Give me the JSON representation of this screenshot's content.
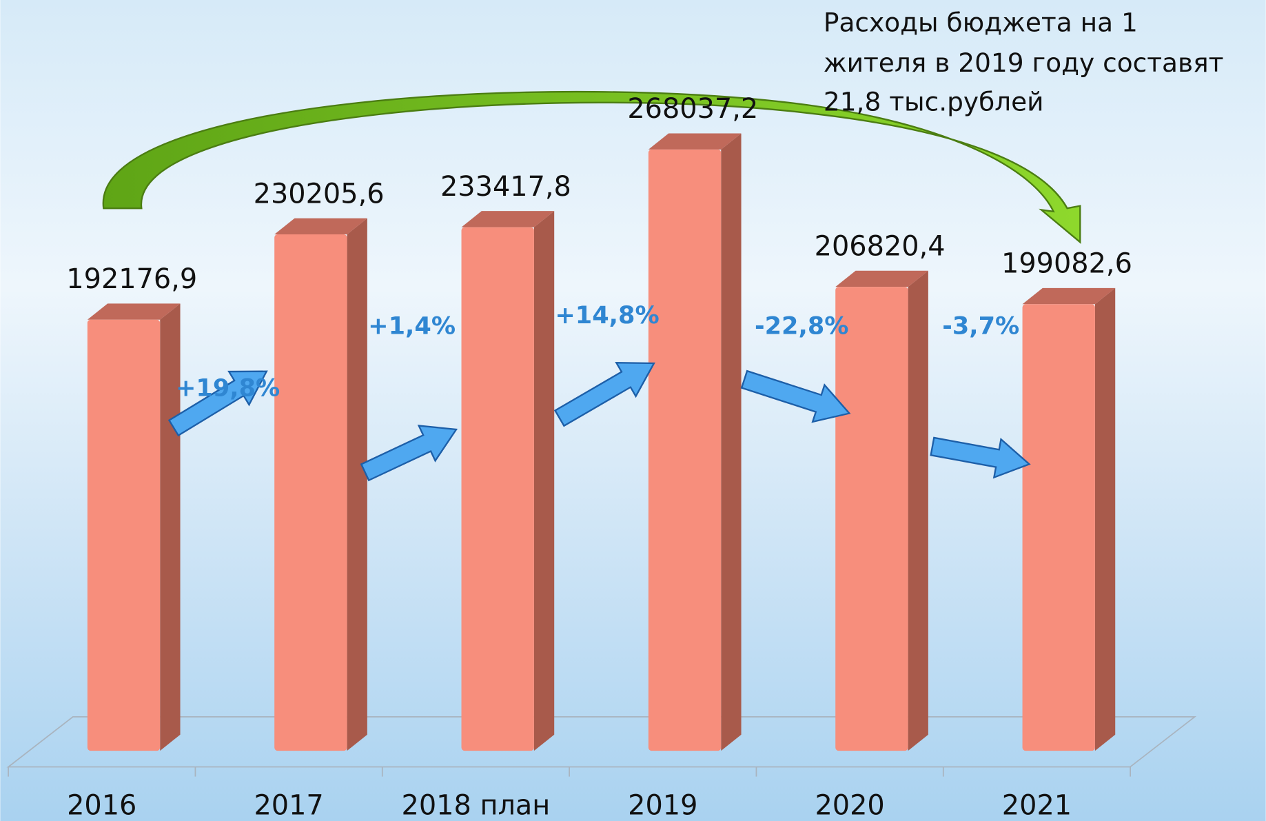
{
  "chart_data": {
    "type": "bar3d",
    "categories": [
      "2016",
      "2017",
      "2018 план",
      "2019",
      "2020",
      "2021"
    ],
    "values": [
      192176.9,
      230205.6,
      233417.8,
      268037.2,
      206820.4,
      199082.6
    ],
    "value_labels": [
      "192176,9",
      "230205,6",
      "233417,8",
      "268037,2",
      "206820,4",
      "199082,6"
    ],
    "color": "#f78e7c",
    "ylim": [
      0,
      280000
    ],
    "change_labels": [
      "+19,8%",
      "+1,4%",
      "+14,8%",
      "-22,8%",
      "-3,7%"
    ],
    "note": [
      "Расходы бюджета на 1",
      "жителя в 2019 году составят",
      "21,8 тыс.рублей"
    ]
  }
}
